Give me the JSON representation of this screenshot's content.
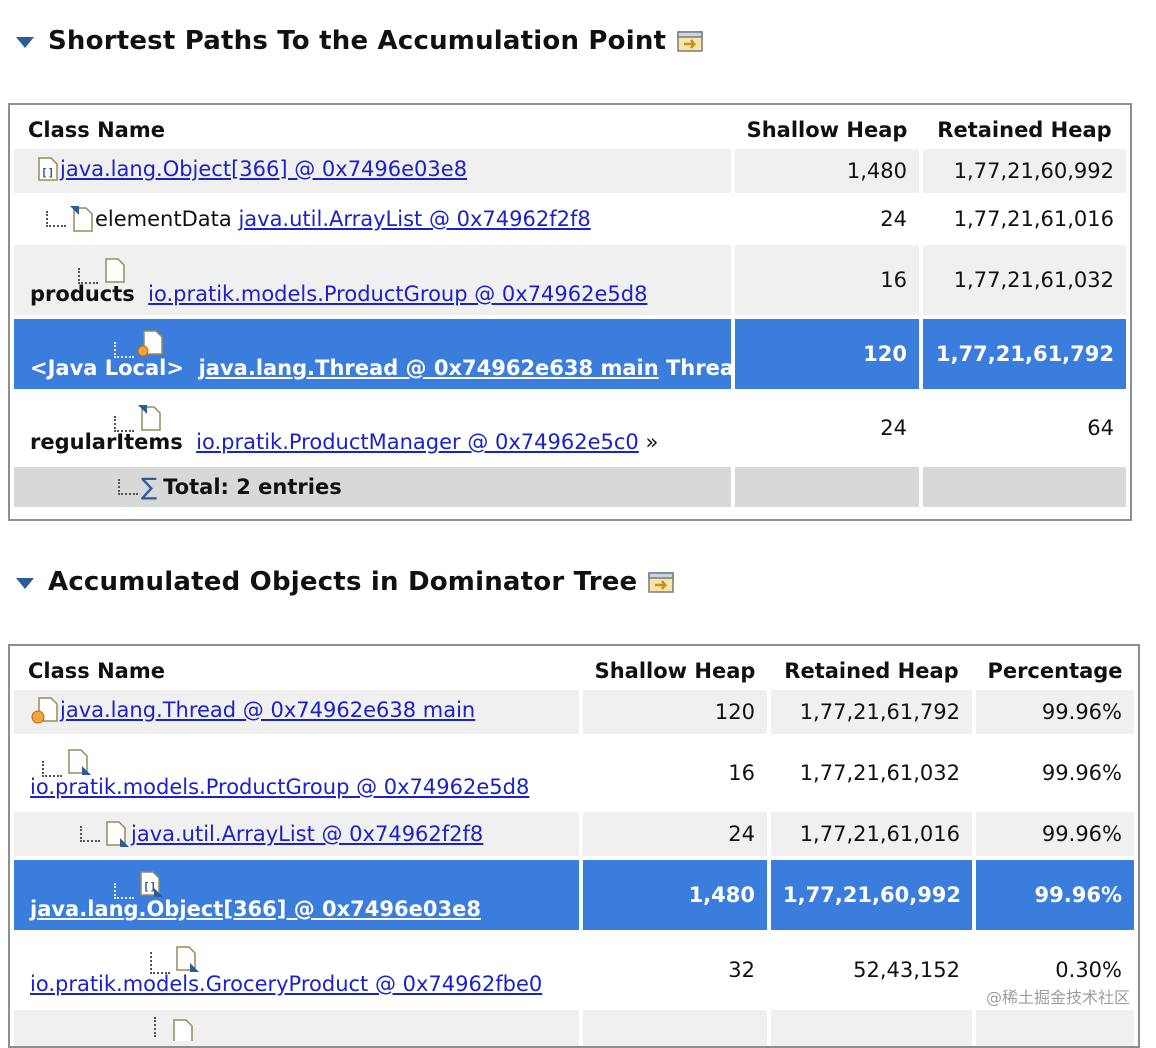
{
  "section1": {
    "title": "Shortest Paths To the Accumulation Point",
    "headers": [
      "Class Name",
      "Shallow Heap",
      "Retained Heap"
    ],
    "rows": [
      {
        "prefix": "",
        "link": "java.lang.Object[366] @ 0x7496e03e8",
        "suffix": "",
        "shallow": "1,480",
        "retained": "1,77,21,60,992"
      },
      {
        "prefix": "elementData",
        "link": "java.util.ArrayList @ 0x74962f2f8",
        "suffix": "",
        "shallow": "24",
        "retained": "1,77,21,61,016"
      },
      {
        "prefix": "products",
        "link": "io.pratik.models.ProductGroup @ 0x74962e5d8",
        "suffix": "",
        "shallow": "16",
        "retained": "1,77,21,61,032"
      },
      {
        "prefix": "<Java Local>",
        "link": "java.lang.Thread @ 0x74962e638 main",
        "suffix": "Thread",
        "shallow": "120",
        "retained": "1,77,21,61,792"
      },
      {
        "prefix": "regularItems",
        "link": "io.pratik.ProductManager @ 0x74962e5c0",
        "suffix": "»",
        "shallow": "24",
        "retained": "64"
      },
      {
        "total": "Total: 2 entries"
      }
    ]
  },
  "section2": {
    "title": "Accumulated Objects in Dominator Tree",
    "headers": [
      "Class Name",
      "Shallow Heap",
      "Retained Heap",
      "Percentage"
    ],
    "rows": [
      {
        "link": "java.lang.Thread @ 0x74962e638 main",
        "shallow": "120",
        "retained": "1,77,21,61,792",
        "pct": "99.96%"
      },
      {
        "link": "io.pratik.models.ProductGroup @ 0x74962e5d8",
        "shallow": "16",
        "retained": "1,77,21,61,032",
        "pct": "99.96%"
      },
      {
        "link": "java.util.ArrayList @ 0x74962f2f8",
        "shallow": "24",
        "retained": "1,77,21,61,016",
        "pct": "99.96%"
      },
      {
        "link": "java.lang.Object[366] @ 0x7496e03e8",
        "shallow": "1,480",
        "retained": "1,77,21,60,992",
        "pct": "99.96%"
      },
      {
        "link": "io.pratik.models.GroceryProduct @ 0x74962fbe0",
        "shallow": "32",
        "retained": "52,43,152",
        "pct": "0.30%"
      }
    ]
  },
  "watermark": "@稀土掘金技术社区",
  "colors": {
    "selection": "#3b7ddd",
    "link": "#1a22c8",
    "row": "#f0f0f0",
    "total": "#d8d8d8"
  },
  "icons": [
    "expand-triangle-icon",
    "export-icon",
    "array-icon",
    "object-file-icon",
    "thread-icon",
    "sum-icon"
  ]
}
